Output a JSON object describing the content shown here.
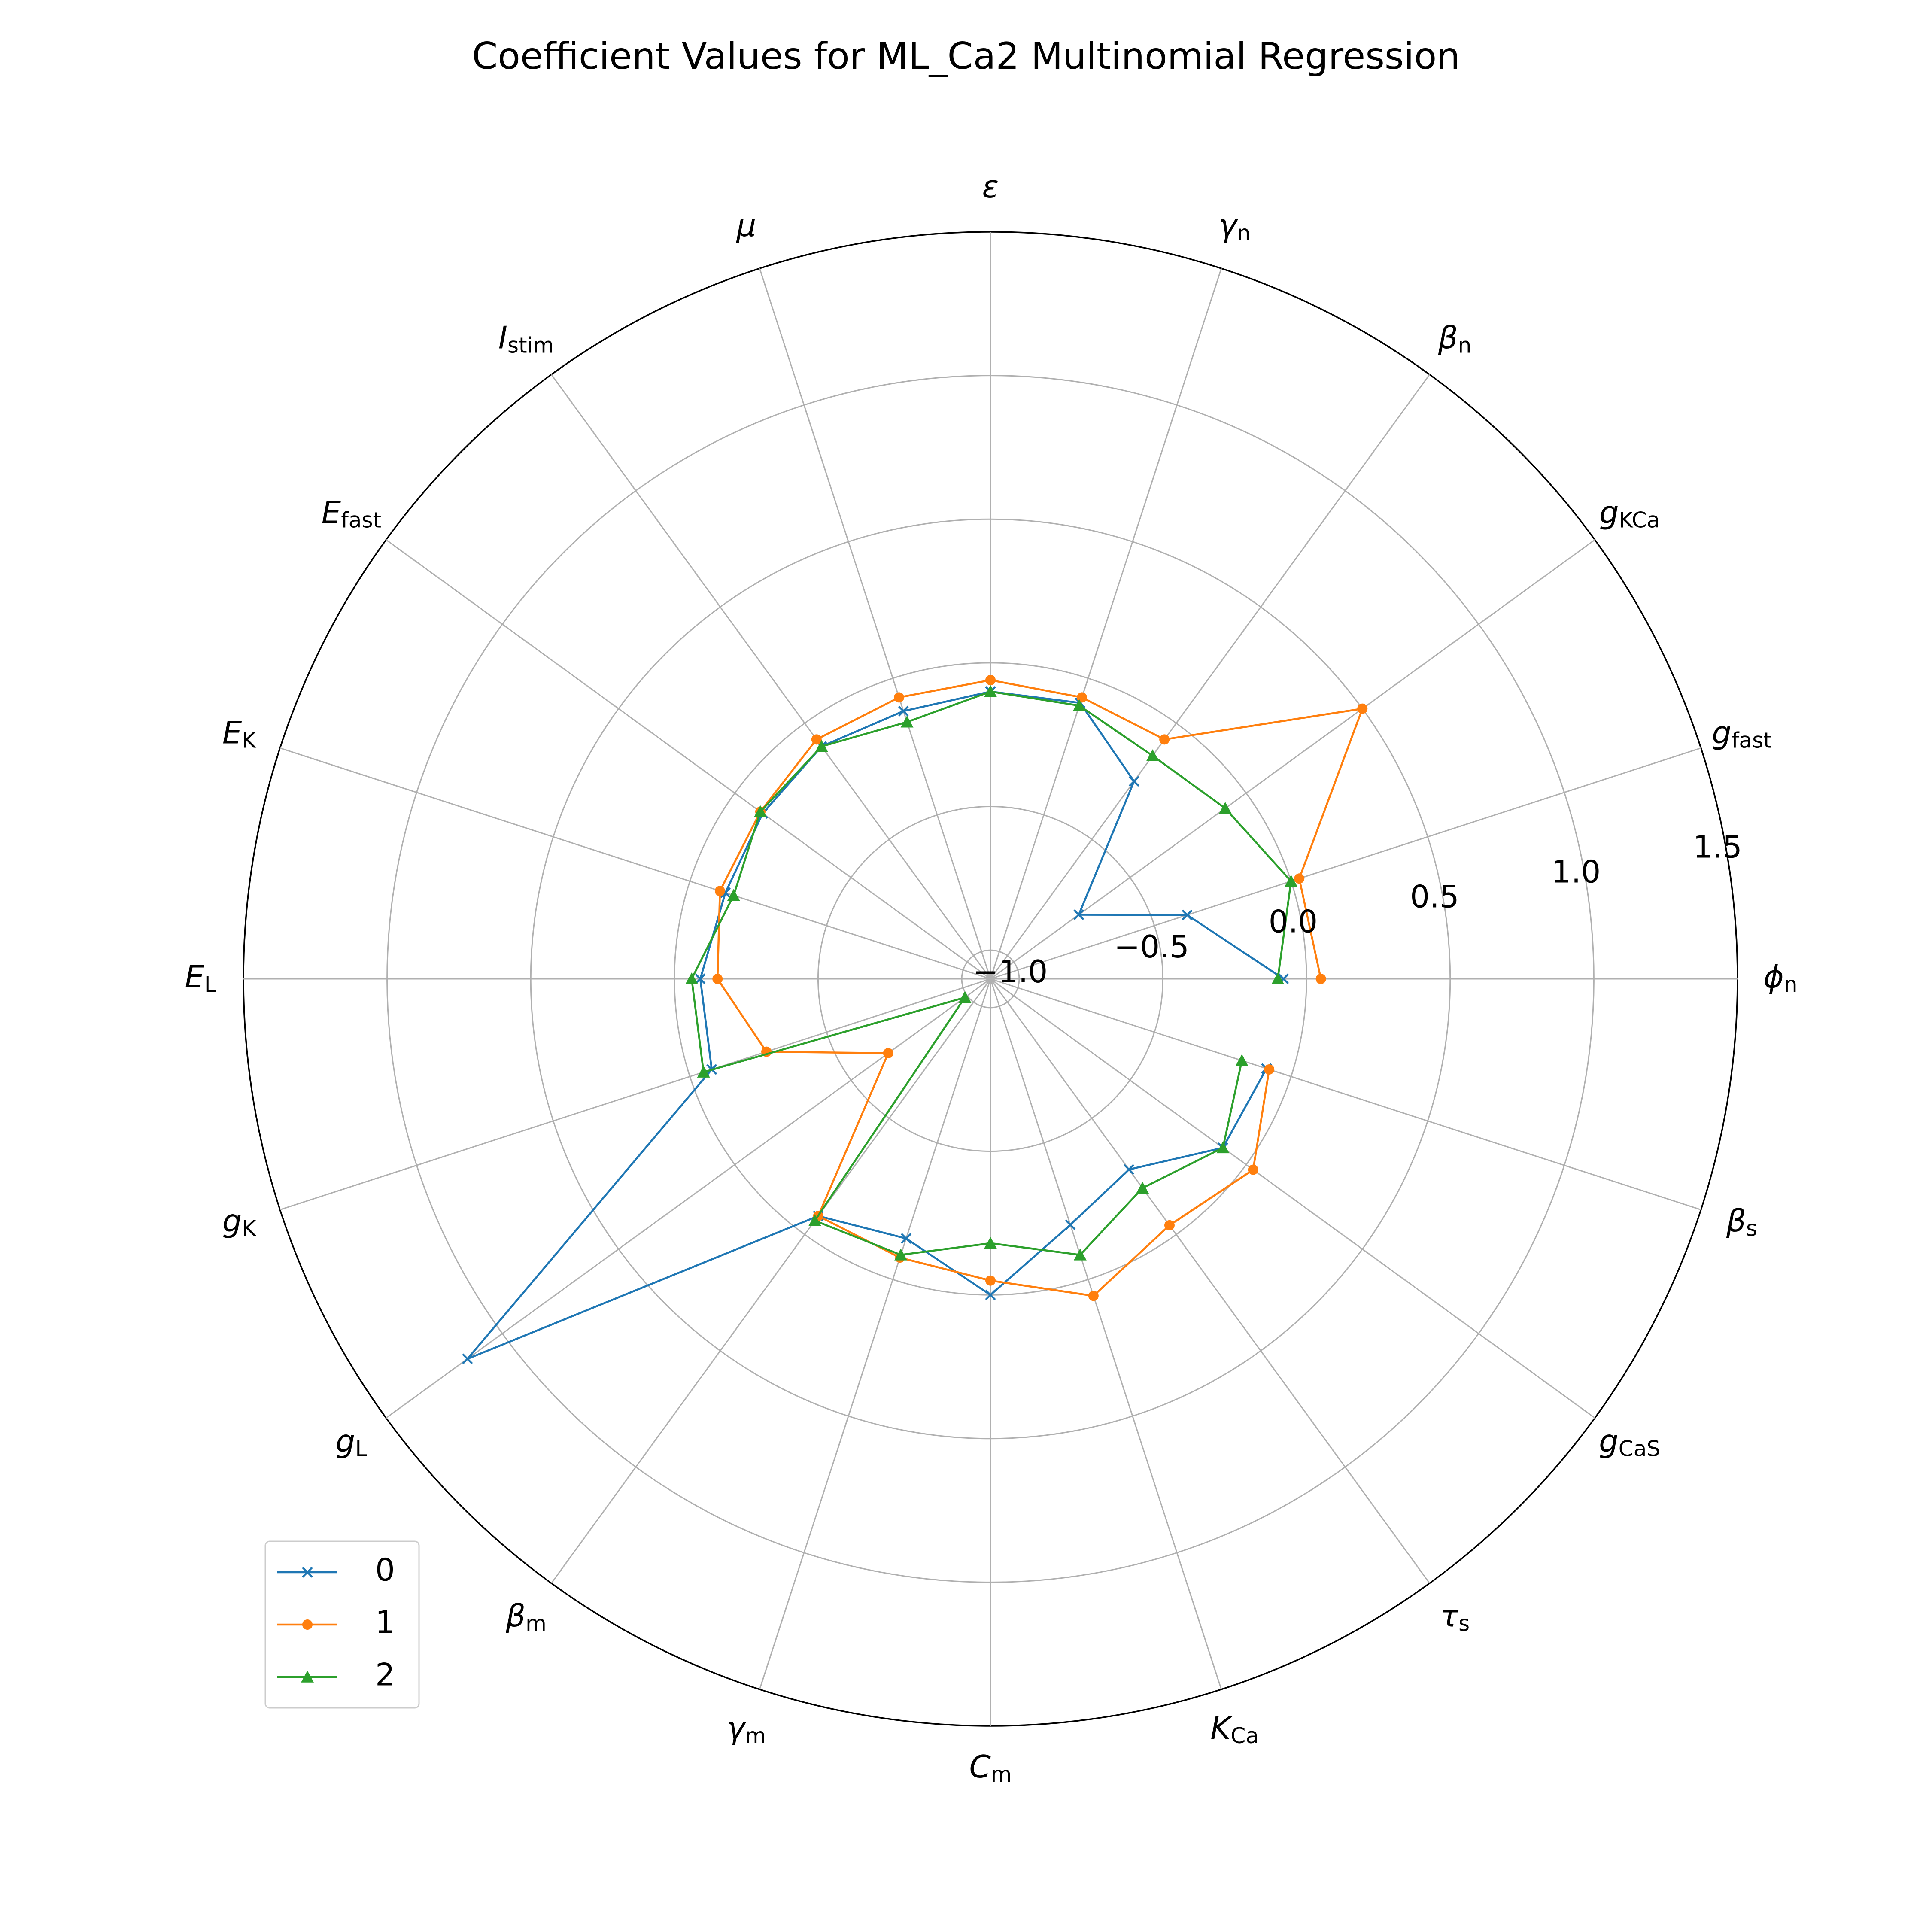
{
  "chart_data": {
    "type": "radar",
    "title": "Coefficient Values for ML_Ca2 Multinomial Regression",
    "rlim": [
      -1.1,
      1.5
    ],
    "rticks": [
      -1.0,
      -0.5,
      0.0,
      0.5,
      1.0,
      1.5
    ],
    "rtick_labels": [
      "−1.0",
      "−0.5",
      "0.0",
      "0.5",
      "1.0",
      "1.5"
    ],
    "grid": true,
    "legend": "lower-left",
    "categories": [
      {
        "base": "ϕ",
        "sub": "n"
      },
      {
        "base": "g",
        "sub": "fast"
      },
      {
        "base": "g",
        "sub": "KCa"
      },
      {
        "base": "β",
        "sub": "n"
      },
      {
        "base": "γ",
        "sub": "n"
      },
      {
        "base": "ε",
        "sub": ""
      },
      {
        "base": "μ",
        "sub": ""
      },
      {
        "base": "I",
        "sub": "stim"
      },
      {
        "base": "E",
        "sub": "fast"
      },
      {
        "base": "E",
        "sub": "K"
      },
      {
        "base": "E",
        "sub": "L"
      },
      {
        "base": "g",
        "sub": "K"
      },
      {
        "base": "g",
        "sub": "L"
      },
      {
        "base": "β",
        "sub": "m"
      },
      {
        "base": "γ",
        "sub": "m"
      },
      {
        "base": "C",
        "sub": "m"
      },
      {
        "base": "K",
        "sub": "Ca"
      },
      {
        "base": "τ",
        "sub": "s"
      },
      {
        "base": "g",
        "sub": "CaS"
      },
      {
        "base": "β",
        "sub": "s"
      }
    ],
    "series": [
      {
        "name": "0",
        "color": "#1f77b4",
        "marker": "x",
        "values": [
          -0.08,
          -0.38,
          -0.72,
          -0.25,
          -0.09,
          -0.1,
          -0.12,
          -0.1,
          -0.12,
          -0.13,
          -0.09,
          -0.08,
          1.15,
          -0.08,
          -0.15,
          0.0,
          -0.2,
          -0.28,
          -0.1,
          -0.09
        ]
      },
      {
        "name": "1",
        "color": "#ff7f0e",
        "marker": "o",
        "values": [
          0.05,
          0.03,
          0.5,
          -0.07,
          -0.07,
          -0.06,
          -0.07,
          -0.07,
          -0.11,
          -0.11,
          -0.15,
          -0.28,
          -0.66,
          -0.08,
          -0.08,
          -0.05,
          0.06,
          -0.04,
          0.03,
          -0.08
        ]
      },
      {
        "name": "2",
        "color": "#2ca02c",
        "marker": "^",
        "values": [
          -0.1,
          0.0,
          -0.09,
          -0.14,
          -0.1,
          -0.1,
          -0.16,
          -0.1,
          -0.11,
          -0.16,
          -0.06,
          -0.05,
          -0.99,
          -0.06,
          -0.09,
          -0.18,
          -0.09,
          -0.2,
          -0.1,
          -0.18
        ]
      }
    ]
  }
}
